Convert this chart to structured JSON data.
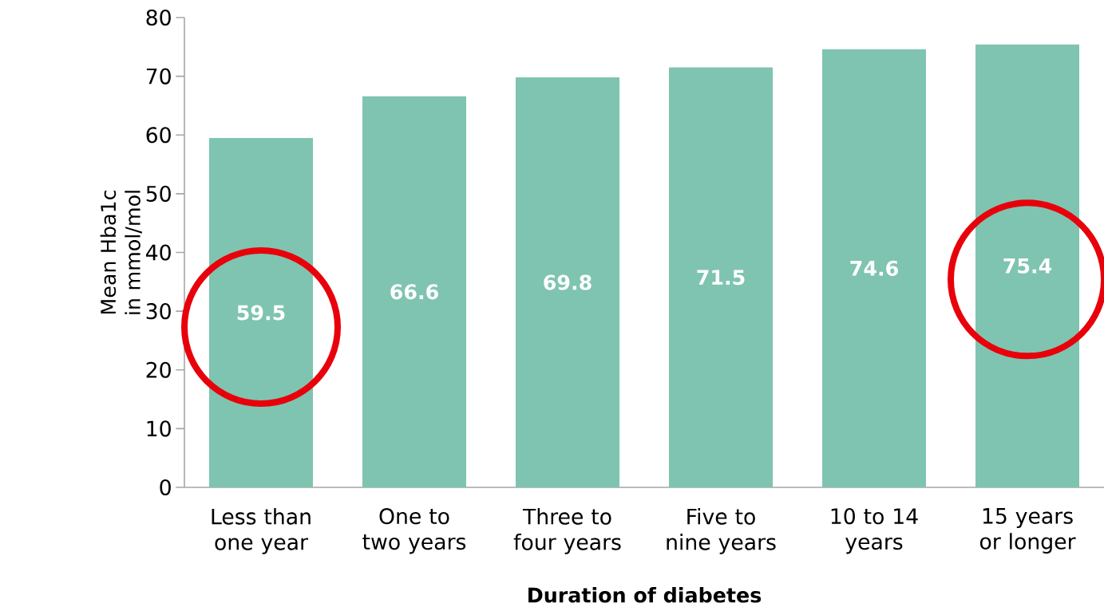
{
  "chart_data": {
    "type": "bar",
    "xlabel": "Duration of diabetes",
    "ylabel": "Mean Hba1c in mmol/mol",
    "categories": [
      "Less than one year",
      "One to two years",
      "Three to four years",
      "Five to nine years",
      "10 to 14 years",
      "15 years or longer"
    ],
    "values": [
      59.5,
      66.6,
      69.8,
      71.5,
      74.6,
      75.4
    ],
    "color": "#7fc4b0",
    "ylim": [
      0,
      80
    ],
    "yticks": [
      0,
      10,
      20,
      30,
      40,
      50,
      60,
      70,
      80
    ],
    "data_labels": true,
    "grid": false
  }
}
